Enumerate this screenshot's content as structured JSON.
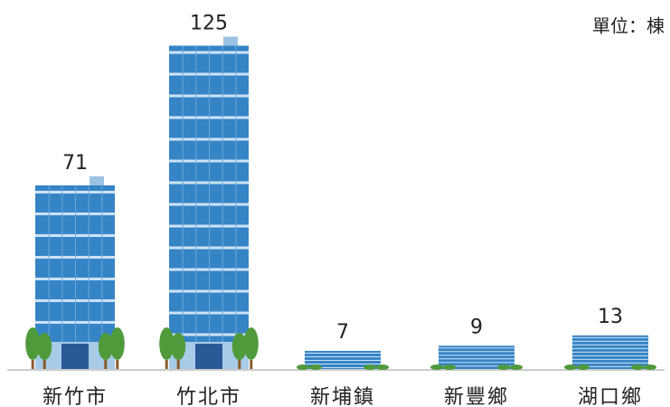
{
  "chart_data": {
    "type": "bar",
    "unit_label": "單位：棟",
    "categories": [
      "新竹市",
      "竹北市",
      "新埔鎮",
      "新豐鄉",
      "湖口鄉"
    ],
    "values": [
      71,
      125,
      7,
      9,
      13
    ],
    "color": "#3584c6"
  }
}
